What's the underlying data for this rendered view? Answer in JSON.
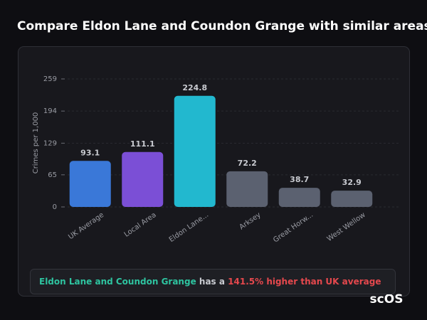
{
  "chart_data": {
    "type": "bar",
    "title": "Compare Eldon Lane and Coundon Grange with similar areas",
    "y_label": "Crimes per 1,000",
    "categories": [
      "UK Average",
      "Local Area",
      "Eldon Lane...",
      "Arksey",
      "Great Horw...",
      "West Wellow"
    ],
    "values": [
      93.1,
      111.1,
      224.8,
      72.2,
      38.7,
      32.9
    ],
    "colors": [
      "#3a78d8",
      "#7b4fd6",
      "#22b8cf",
      "#5b6170",
      "#5b6170",
      "#5b6170"
    ],
    "ylim": [
      0,
      259
    ],
    "yticks": [
      0,
      65,
      129,
      194,
      259
    ],
    "grid": true
  },
  "summary": {
    "area": "Eldon Lane and Coundon Grange",
    "connector": "has a",
    "comparison": "141.5% higher than UK average"
  },
  "brand": "scOS"
}
